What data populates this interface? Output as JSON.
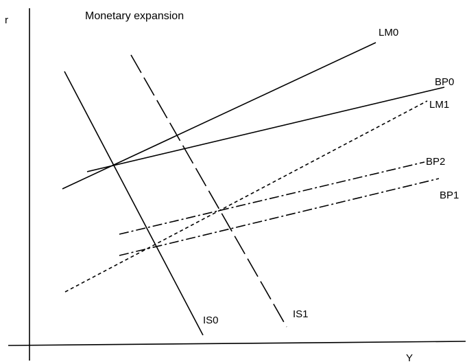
{
  "title": "Monetary expansion",
  "axes": {
    "y_label": "r",
    "x_label": "Y"
  },
  "curves": {
    "lm0": "LM0",
    "bp0": "BP0",
    "lm1": "LM1",
    "bp2": "BP2",
    "bp1": "BP1",
    "is0": "IS0",
    "is1": "IS1"
  },
  "colors": {
    "line": "#000000",
    "background": "#ffffff"
  }
}
